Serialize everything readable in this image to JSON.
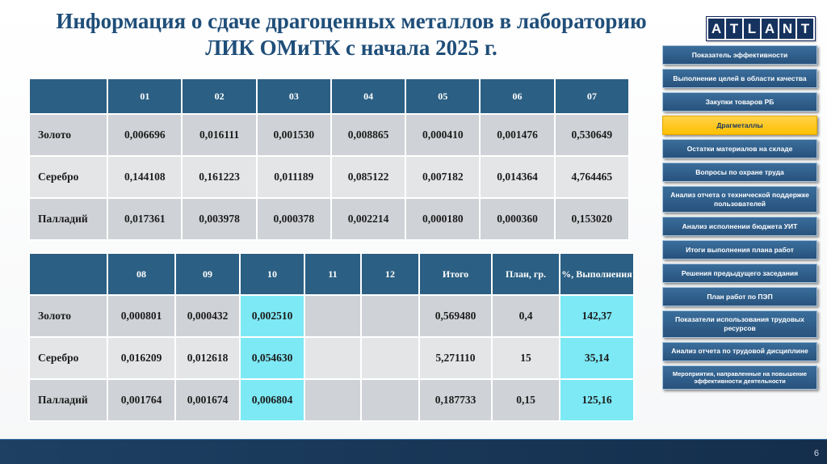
{
  "title": {
    "line1": "Информация о сдаче драгоценных металлов в лабораторию",
    "line2": "ЛИК ОМиТК с начала 2025 г."
  },
  "logo": {
    "letters": [
      "A",
      "T",
      "L",
      "A",
      "N",
      "T"
    ]
  },
  "table1": {
    "headers": [
      "",
      "01",
      "02",
      "03",
      "04",
      "05",
      "06",
      "07"
    ],
    "rows": [
      {
        "label": "Золото",
        "values": [
          "0,006696",
          "0,016111",
          "0,001530",
          "0,008865",
          "0,000410",
          "0,001476",
          "0,530649"
        ]
      },
      {
        "label": "Серебро",
        "values": [
          "0,144108",
          "0,161223",
          "0,011189",
          "0,085122",
          "0,007182",
          "0,014364",
          "4,764465"
        ]
      },
      {
        "label": "Палладий",
        "values": [
          "0,017361",
          "0,003978",
          "0,000378",
          "0,002214",
          "0,000180",
          "0,000360",
          "0,153020"
        ]
      }
    ]
  },
  "table2": {
    "headers": [
      "",
      "08",
      "09",
      "10",
      "11",
      "12",
      "Итого",
      "План, гр.",
      "%, Выполнения"
    ],
    "highlight_value_indexes": [
      2,
      7
    ],
    "rows": [
      {
        "label": "Золото",
        "values": [
          "0,000801",
          "0,000432",
          "0,002510",
          "",
          "",
          "0,569480",
          "0,4",
          "142,37"
        ]
      },
      {
        "label": "Серебро",
        "values": [
          "0,016209",
          "0,012618",
          "0,054630",
          "",
          "",
          "5,271110",
          "15",
          "35,14"
        ]
      },
      {
        "label": "Палладий",
        "values": [
          "0,001764",
          "0,001674",
          "0,006804",
          "",
          "",
          "0,187733",
          "0,15",
          "125,16"
        ]
      }
    ]
  },
  "sidebar": {
    "items": [
      {
        "label": "Показатель эффективности"
      },
      {
        "label": "Выполнение целей в области качества"
      },
      {
        "label": "Закупки товаров РБ"
      },
      {
        "label": "Драгметаллы",
        "active": true
      },
      {
        "label": "Остатки материалов на складе"
      },
      {
        "label": "Вопросы по охране труда"
      },
      {
        "label": "Анализ отчета о технической поддержке пользователей"
      },
      {
        "label": "Анализ исполнении бюджета УИТ"
      },
      {
        "label": "Итоги выполнения плана работ"
      },
      {
        "label": "Решения предыдущего заседания"
      },
      {
        "label": "План работ по ПЭП"
      },
      {
        "label": "Показатели использования трудовых ресурсов"
      },
      {
        "label": "Анализ отчета по трудовой дисциплине"
      },
      {
        "label": "Мероприятия, направленные на повышение эффективности деятельности",
        "small": true
      }
    ]
  },
  "footer": {
    "page_number": "6"
  },
  "colors": {
    "title_blue": "#1F4E79",
    "table_header_blue": "#2B5F83",
    "row_dark_gray": "#CFD2D6",
    "row_light_gray": "#E4E5E7",
    "highlight_cyan": "#7DE9F5",
    "sidebar_blue": "#27527C",
    "active_yellow": "#FFC000",
    "footer_navy": "#1D4063"
  }
}
